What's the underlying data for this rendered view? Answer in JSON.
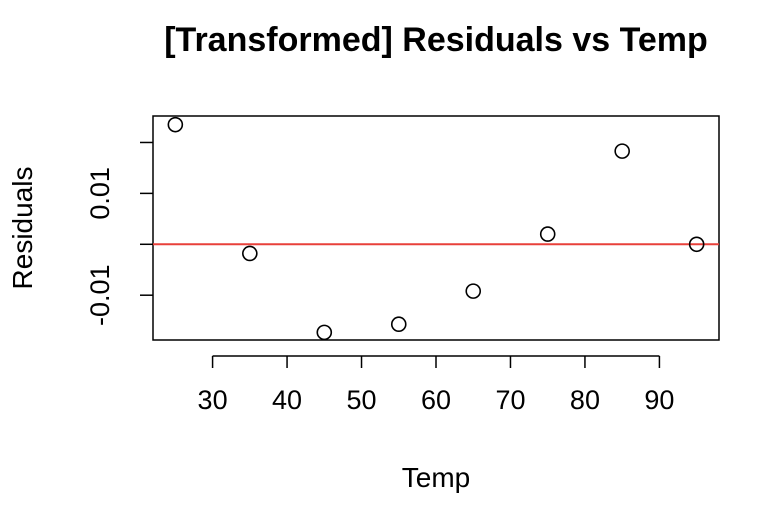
{
  "chart_data": {
    "type": "scatter",
    "title": "[Transformed] Residuals vs Temp",
    "xlabel": "Temp",
    "ylabel": "Residuals",
    "xlim": [
      22,
      98
    ],
    "ylim": [
      -0.0188,
      0.0252
    ],
    "x_ticks": [
      30,
      40,
      50,
      60,
      70,
      80,
      90
    ],
    "x_tick_labels": [
      "30",
      "40",
      "50",
      "60",
      "70",
      "80",
      "90"
    ],
    "y_ticks": [
      -0.01,
      0.0,
      0.01,
      0.02
    ],
    "y_tick_labels": [
      "-0.01",
      "",
      "0.01",
      ""
    ],
    "points": [
      {
        "x": 25,
        "y": 0.0235
      },
      {
        "x": 35,
        "y": -0.0018
      },
      {
        "x": 45,
        "y": -0.0173
      },
      {
        "x": 55,
        "y": -0.0157
      },
      {
        "x": 65,
        "y": -0.0092
      },
      {
        "x": 75,
        "y": 0.002
      },
      {
        "x": 85,
        "y": 0.0183
      },
      {
        "x": 95,
        "y": 0.0
      }
    ],
    "reference_line": {
      "y": 0,
      "color": "#e8403a"
    },
    "marker": "open-circle",
    "grid": false,
    "legend": "none"
  }
}
